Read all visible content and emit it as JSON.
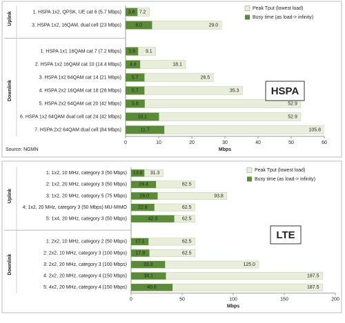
{
  "chart_data": [
    {
      "type": "hbar",
      "title": "HSPA",
      "xlabel": "Mbps",
      "source": "Source: NGMN",
      "row_groups": [
        "Uplink",
        "Downlink"
      ],
      "categories": [
        "1. HSPA 1x2, QPSK, UE cat 6 (5.7 Mbps)",
        "3. HSPA 1x2, 16QAM, dual cell (23 Mbps)",
        null,
        "1. HSPA 1x1 16QAM cat 7 (7.2 Mbps)",
        "2. HSPA 1x2 16QAM cat 10 (14.4 Mbps)",
        "3. HSPA 1x2 64QAM cat 14 (21 Mbps)",
        "4. HSPA 2x2 16QAM cat 18 (28 Mbps)",
        "5. HSPA 2x2 64QAM cat 20 (42 Mbps)",
        "6. HSPA 1x2 64QAM dual cell cat 24 (42 Mbps)",
        "7. HSPA 2x2 64QAM dual cell (84 Mbps)"
      ],
      "series": [
        {
          "name": "Peak Tput (lowest load)",
          "color": "#e8eedb",
          "values": [
            7.2,
            29.0,
            null,
            9.1,
            18.1,
            26.5,
            35.3,
            52.9,
            52.9,
            105.8
          ],
          "value_labels": [
            "7.2",
            "29.0",
            null,
            "9.1",
            "18.1",
            "26.5",
            "35.3",
            "52.9",
            "52.9",
            "105.8"
          ]
        },
        {
          "name": "Busy time (as load-> infinity)",
          "color": "#5b8a38",
          "values": [
            3.6,
            8.0,
            null,
            3.8,
            4.4,
            5.7,
            5.7,
            5.8,
            10.1,
            11.7
          ],
          "value_labels": [
            "3.6",
            "8.0",
            null,
            "3.8",
            "4.4",
            "5.7",
            "5.7",
            "5.8",
            "10.1",
            "11.7"
          ]
        }
      ],
      "xlim": [
        0,
        60
      ],
      "xticks": [
        0,
        10,
        20,
        30,
        40,
        50,
        60
      ]
    },
    {
      "type": "hbar",
      "title": "LTE",
      "xlabel": "Mbps",
      "row_groups": [
        "Uplink",
        "Downlink"
      ],
      "categories": [
        "1: 1x2, 10 MHz, category 3 (50 Mbps)",
        "2: 1x2, 20 MHz, category 3 (50 Mbps)",
        "3: 1x2, 20 MHz, category 5 (75 Mbps)",
        "4: 1x2, 20 MHz, category 3 (50 Mbps) MU-MIMO",
        "5: 1x4, 20 MHz, category 3 (50 Mbps)",
        null,
        "1: 2x2, 10 MHz, category 2 (50 Mbps)",
        "2: 2x2, 10 MHz, category 3 (100 Mbps)",
        "3: 2x2, 20 MHz, category 3 (100 Mbps)",
        "4: 2x2, 20 MHz, category 4 (150 Mbps)",
        "5: 4x2, 20 MHz, category 4 (150 Mbps)"
      ],
      "series": [
        {
          "name": "Peak Tput (lowest load)",
          "color": "#e8eedb",
          "values": [
            31.3,
            62.5,
            93.8,
            62.5,
            62.5,
            null,
            62.5,
            62.5,
            125.0,
            187.5,
            187.5
          ],
          "value_labels": [
            "31.3",
            "62.5",
            "93.8",
            "62.5",
            "62.5",
            null,
            "62.5",
            "62.5",
            "125.0",
            "187.5",
            "187.5"
          ]
        },
        {
          "name": "Busy time (as load-> infinity)",
          "color": "#5b8a38",
          "values": [
            13.0,
            24.4,
            26.0,
            22.8,
            42.3,
            null,
            17.1,
            17.9,
            33.3,
            34.1,
            40.6
          ],
          "value_labels": [
            "13.0",
            "24.4",
            "26.0",
            "22.8",
            "42.3",
            null,
            "17.1",
            "17.9",
            "33.3",
            "34.1",
            "40.6"
          ]
        }
      ],
      "xlim": [
        0,
        200
      ],
      "xticks": [
        0,
        50,
        100,
        150,
        200
      ]
    }
  ]
}
